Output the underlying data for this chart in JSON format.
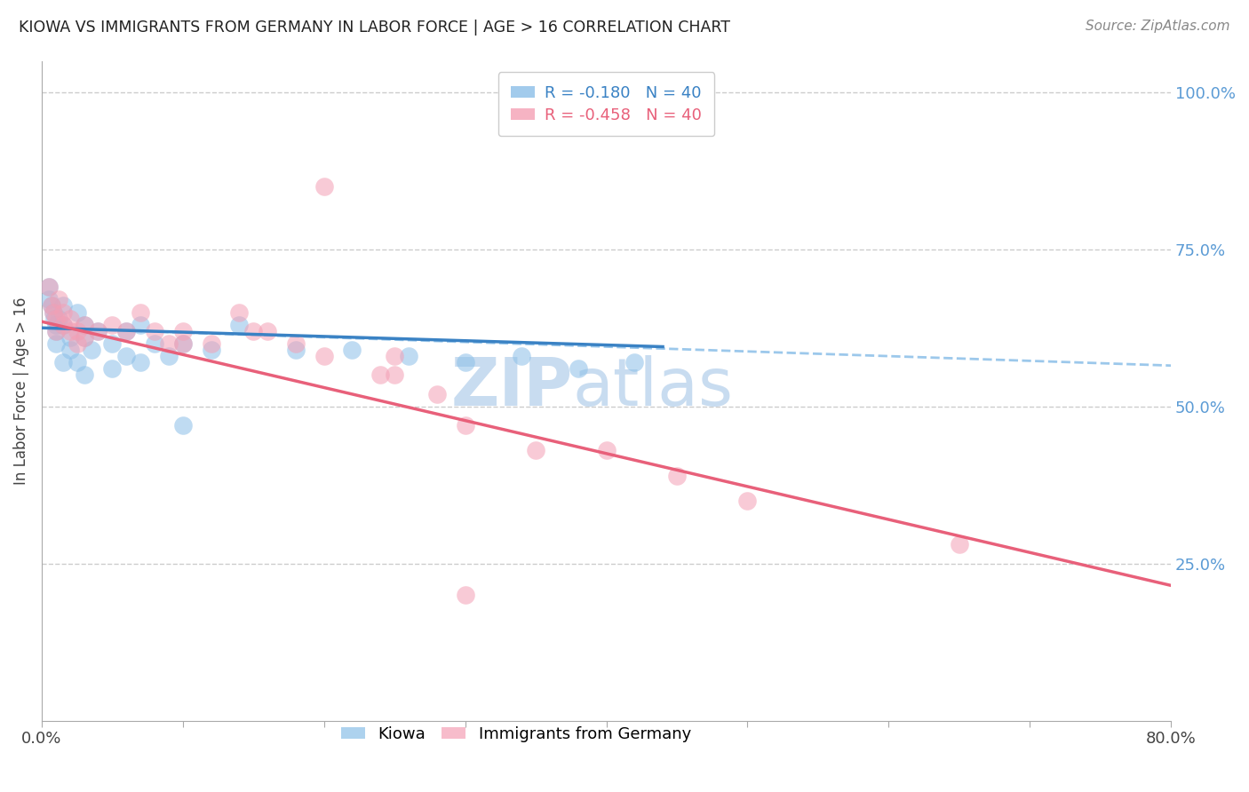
{
  "title": "KIOWA VS IMMIGRANTS FROM GERMANY IN LABOR FORCE | AGE > 16 CORRELATION CHART",
  "source": "Source: ZipAtlas.com",
  "ylabel": "In Labor Force | Age > 16",
  "x_min": 0.0,
  "x_max": 0.8,
  "y_min": 0.0,
  "y_max": 1.05,
  "y_ticks_right": [
    0.25,
    0.5,
    0.75,
    1.0
  ],
  "y_tick_labels_right": [
    "25.0%",
    "50.0%",
    "75.0%",
    "100.0%"
  ],
  "grid_color": "#cccccc",
  "background_color": "#ffffff",
  "kiowa_color": "#8bbfe8",
  "germany_color": "#f4a0b5",
  "kiowa_R": -0.18,
  "kiowa_N": 40,
  "germany_R": -0.458,
  "germany_N": 40,
  "kiowa_x": [
    0.005,
    0.005,
    0.007,
    0.008,
    0.009,
    0.01,
    0.01,
    0.01,
    0.012,
    0.015,
    0.015,
    0.02,
    0.02,
    0.025,
    0.03,
    0.03,
    0.035,
    0.04,
    0.05,
    0.06,
    0.06,
    0.07,
    0.08,
    0.09,
    0.1,
    0.12,
    0.14,
    0.18,
    0.22,
    0.26,
    0.3,
    0.34,
    0.38,
    0.42,
    0.015,
    0.025,
    0.03,
    0.05,
    0.07,
    0.1
  ],
  "kiowa_y": [
    0.69,
    0.67,
    0.66,
    0.65,
    0.64,
    0.63,
    0.62,
    0.6,
    0.64,
    0.66,
    0.63,
    0.61,
    0.59,
    0.65,
    0.63,
    0.61,
    0.59,
    0.62,
    0.6,
    0.58,
    0.62,
    0.63,
    0.6,
    0.58,
    0.6,
    0.59,
    0.63,
    0.59,
    0.59,
    0.58,
    0.57,
    0.58,
    0.56,
    0.57,
    0.57,
    0.57,
    0.55,
    0.56,
    0.57,
    0.47
  ],
  "germany_x": [
    0.005,
    0.007,
    0.008,
    0.01,
    0.01,
    0.012,
    0.015,
    0.015,
    0.02,
    0.02,
    0.025,
    0.025,
    0.03,
    0.03,
    0.04,
    0.05,
    0.06,
    0.07,
    0.08,
    0.09,
    0.1,
    0.1,
    0.12,
    0.14,
    0.15,
    0.16,
    0.18,
    0.2,
    0.24,
    0.25,
    0.25,
    0.28,
    0.3,
    0.35,
    0.4,
    0.45,
    0.5,
    0.65,
    0.2,
    0.3
  ],
  "germany_y": [
    0.69,
    0.66,
    0.65,
    0.64,
    0.62,
    0.67,
    0.65,
    0.63,
    0.64,
    0.62,
    0.62,
    0.6,
    0.63,
    0.61,
    0.62,
    0.63,
    0.62,
    0.65,
    0.62,
    0.6,
    0.6,
    0.62,
    0.6,
    0.65,
    0.62,
    0.62,
    0.6,
    0.58,
    0.55,
    0.58,
    0.55,
    0.52,
    0.47,
    0.43,
    0.43,
    0.39,
    0.35,
    0.28,
    0.85,
    0.2
  ],
  "kiowa_trend_y_at_0": 0.625,
  "kiowa_trend_y_at_044": 0.595,
  "kiowa_trend_y_at_080": 0.565,
  "germany_trend_y_at_0": 0.635,
  "germany_trend_y_at_080": 0.215,
  "watermark_line1": "ZIP",
  "watermark_line2": "atlas",
  "watermark_color": "#c8dcf0"
}
